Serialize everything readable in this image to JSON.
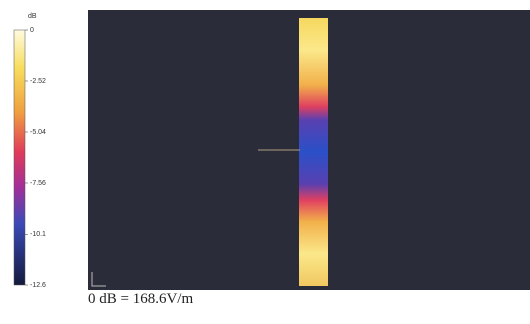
{
  "colorbar": {
    "unit": "dB",
    "ticks": [
      0,
      -2.52,
      -5.04,
      -7.56,
      -10.1,
      -12.6
    ]
  },
  "caption": "0 dB = 168.6V/m"
}
